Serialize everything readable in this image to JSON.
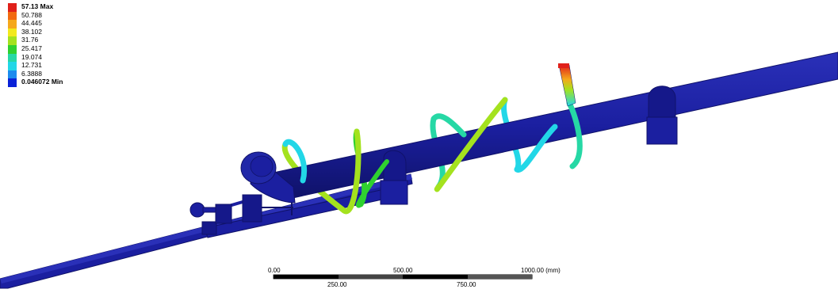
{
  "legend": {
    "entries": [
      {
        "label": "57.13 Max",
        "color": "#e0201a",
        "bold": true
      },
      {
        "label": "50.788",
        "color": "#f26a10",
        "bold": false
      },
      {
        "label": "44.445",
        "color": "#f5a81c",
        "bold": false
      },
      {
        "label": "38.102",
        "color": "#f2e91d",
        "bold": false
      },
      {
        "label": "31.76",
        "color": "#a4e21e",
        "bold": false
      },
      {
        "label": "25.417",
        "color": "#2fd12f",
        "bold": false
      },
      {
        "label": "19.074",
        "color": "#26d8a5",
        "bold": false
      },
      {
        "label": "12.731",
        "color": "#22d7e7",
        "bold": false
      },
      {
        "label": "6.3888",
        "color": "#1c8bee",
        "bold": false
      },
      {
        "label": "0.046072 Min",
        "color": "#0a22d8",
        "bold": true
      }
    ]
  },
  "scale_bar": {
    "top_labels": [
      "0.00",
      "500.00",
      "1000.00 (mm)"
    ],
    "bottom_labels": [
      "250.00",
      "750.00"
    ]
  },
  "colors": {
    "mesh_blue": "#1b1fa0",
    "mesh_dark": "#10126a",
    "background": "#ffffff"
  }
}
